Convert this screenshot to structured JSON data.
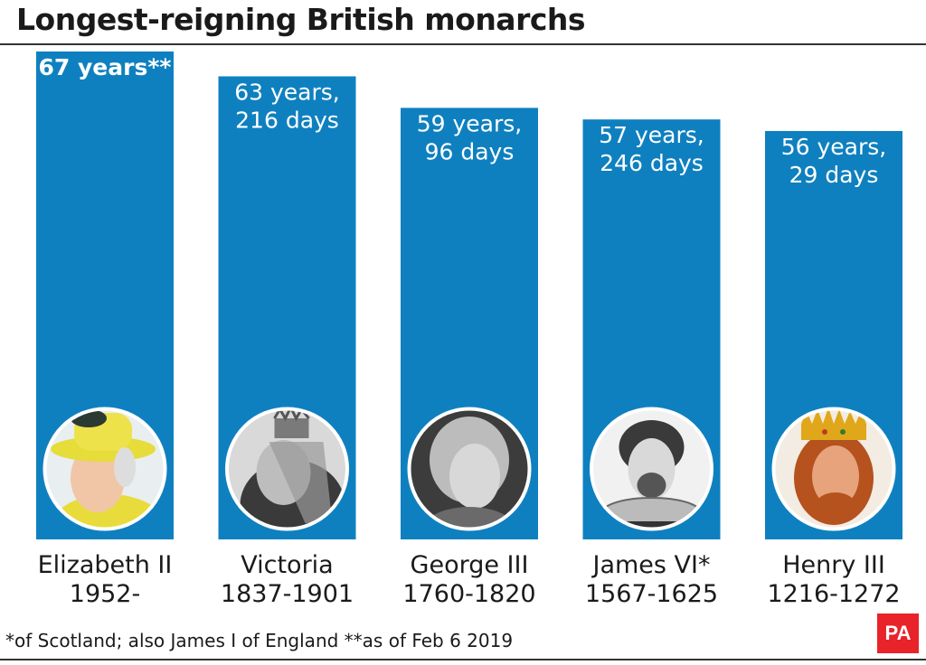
{
  "title": "Longest-reigning British monarchs",
  "footnote": "*of Scotland; also James I of England **as of Feb 6 2019",
  "logo_text": "PA",
  "colors": {
    "bar": "#0f80bf",
    "text": "#1a1a1a",
    "logo": "#e8232a"
  },
  "chart_data": {
    "type": "bar",
    "title": "Longest-reigning British monarchs",
    "categories": [
      "Elizabeth II",
      "Victoria",
      "George III",
      "James VI*",
      "Henry III"
    ],
    "reign_periods": [
      "1952-",
      "1837-1901",
      "1760-1820",
      "1567-1625",
      "1216-1272"
    ],
    "values": [
      67,
      63.59,
      59.26,
      57.67,
      56.08
    ],
    "value_labels": [
      [
        "67 years**"
      ],
      [
        "63 years,",
        "216 days"
      ],
      [
        "59 years,",
        "96 days"
      ],
      [
        "57 years,",
        "246 days"
      ],
      [
        "56 years,",
        "29 days"
      ]
    ],
    "portraits": [
      "elizabeth-ii-portrait",
      "victoria-portrait",
      "george-iii-portrait",
      "james-vi-portrait",
      "henry-iii-portrait"
    ],
    "unit": "years",
    "ylim": [
      0,
      67
    ],
    "grid": false,
    "legend": "none"
  }
}
